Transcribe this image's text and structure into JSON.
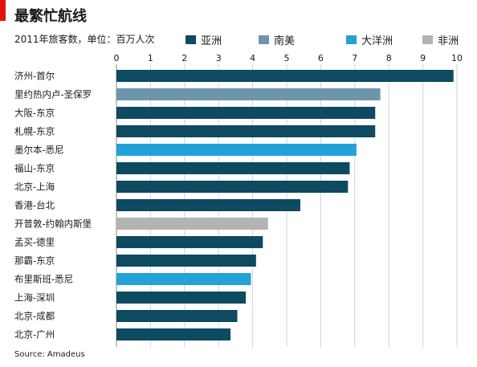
{
  "page": {
    "title": "最繁忙航线",
    "subtitle": "2011年旅客数，单位：百万人次",
    "source": "Source: Amadeus"
  },
  "legend": [
    {
      "label": "亚洲",
      "color": "#0e4a60"
    },
    {
      "label": "南美",
      "color": "#6d96ab"
    },
    {
      "label": "大洋洲",
      "color": "#22a2d6"
    },
    {
      "label": "非洲",
      "color": "#b3b3b3"
    }
  ],
  "chart_data": {
    "type": "bar",
    "orientation": "horizontal",
    "title": "最繁忙航线",
    "subtitle": "2011年旅客数，单位：百万人次",
    "xlim": [
      0,
      10
    ],
    "xticks": [
      0,
      1,
      2,
      3,
      4,
      5,
      6,
      7,
      8,
      9,
      10
    ],
    "grid": true,
    "legend_position": "top",
    "categories": [
      "济州-首尔",
      "里约热内卢-圣保罗",
      "大阪-东京",
      "札幌-东京",
      "墨尔本-悉尼",
      "福山-东京",
      "北京-上海",
      "香港-台北",
      "开普敦-约翰内斯堡",
      "孟买-德里",
      "那霸-东京",
      "布里斯班-悉尼",
      "上海-深圳",
      "北京-成都",
      "北京-广州"
    ],
    "values": [
      9.9,
      7.75,
      7.6,
      7.6,
      7.05,
      6.85,
      6.8,
      5.4,
      4.45,
      4.3,
      4.1,
      3.95,
      3.8,
      3.55,
      3.35
    ],
    "regions": [
      "亚洲",
      "南美",
      "亚洲",
      "亚洲",
      "大洋洲",
      "亚洲",
      "亚洲",
      "亚洲",
      "非洲",
      "亚洲",
      "亚洲",
      "大洋洲",
      "亚洲",
      "亚洲",
      "亚洲"
    ]
  }
}
